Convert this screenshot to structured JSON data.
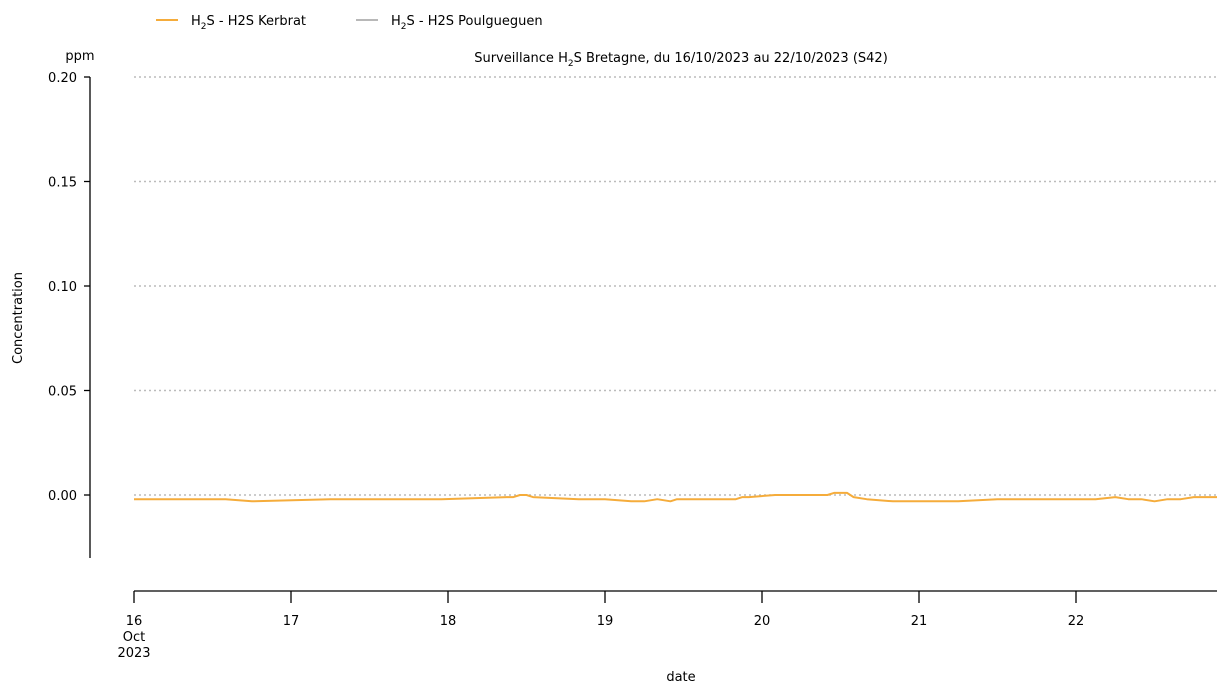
{
  "chart_data": {
    "type": "line",
    "title_prefix": "Surveillance H",
    "title_sub": "2",
    "title_suffix": "S Bretagne, du 16/10/2023 au 22/10/2023 (S42)",
    "ylabel": "Concentration",
    "yunit": "ppm",
    "xlabel": "date",
    "ylim": [
      -0.03,
      0.2
    ],
    "yticks": [
      "0.20",
      "0.15",
      "0.10",
      "0.05",
      "0.00"
    ],
    "ytick_values": [
      0.2,
      0.15,
      0.1,
      0.05,
      0.0
    ],
    "xlim": [
      "2023-10-16T00:00",
      "2023-10-22T23:30"
    ],
    "xticks": [
      {
        "date": "2023-10-16T00:00",
        "day": "16",
        "month": "Oct",
        "year": "2023"
      },
      {
        "date": "2023-10-17T00:00",
        "day": "17"
      },
      {
        "date": "2023-10-18T00:00",
        "day": "18"
      },
      {
        "date": "2023-10-19T00:00",
        "day": "19"
      },
      {
        "date": "2023-10-20T00:00",
        "day": "20"
      },
      {
        "date": "2023-10-21T00:00",
        "day": "21"
      },
      {
        "date": "2023-10-22T00:00",
        "day": "22"
      }
    ],
    "grid": "horizontal-dotted",
    "legend_position": "top-left",
    "series": [
      {
        "name_prefix": "H",
        "name_sub": "2",
        "name_suffix": "S - H2S Kerbrat",
        "color": "#f5ac3b",
        "x": [
          "2023-10-16T00:00",
          "2023-10-16T14:00",
          "2023-10-16T13:30",
          "2023-10-16T14:00",
          "2023-10-16T18:00",
          "2023-10-16T18:00",
          "2023-10-17T06:00",
          "2023-10-17T12:00",
          "2023-10-17T22:00",
          "2023-10-17T23:00",
          "2023-10-18T09:00",
          "2023-10-18T10:00",
          "2023-10-18T11:00",
          "2023-10-18T12:00",
          "2023-10-18T13:00",
          "2023-10-18T20:00",
          "2023-10-18T23:30",
          "2023-10-19T00:00",
          "2023-10-19T04:00",
          "2023-10-19T05:00",
          "2023-10-19T06:00",
          "2023-10-19T08:00",
          "2023-10-19T10:00",
          "2023-10-19T11:00",
          "2023-10-19T12:00",
          "2023-10-19T14:00",
          "2023-10-19T17:00",
          "2023-10-19T19:00",
          "2023-10-19T20:00",
          "2023-10-19T21:00",
          "2023-10-19T22:00",
          "2023-10-20T02:00",
          "2023-10-20T06:00",
          "2023-10-20T07:00",
          "2023-10-20T09:00",
          "2023-10-20T10:00",
          "2023-10-20T11:00",
          "2023-10-20T12:00",
          "2023-10-20T13:00",
          "2023-10-20T14:00",
          "2023-10-20T16:00",
          "2023-10-20T20:00",
          "2023-10-21T00:00",
          "2023-10-21T05:00",
          "2023-10-21T06:00",
          "2023-10-21T12:00",
          "2023-10-21T18:00",
          "2023-10-22T03:00",
          "2023-10-22T06:00",
          "2023-10-22T08:00",
          "2023-10-22T10:00",
          "2023-10-22T12:00",
          "2023-10-22T14:00",
          "2023-10-22T16:00",
          "2023-10-22T18:00",
          "2023-10-22T23:30"
        ],
        "y": [
          -0.002,
          -0.002,
          -0.002,
          -0.002,
          -0.003,
          -0.003,
          -0.002,
          -0.002,
          -0.002,
          -0.002,
          -0.001,
          -0.001,
          0.0,
          0.0,
          -0.001,
          -0.002,
          -0.002,
          -0.002,
          -0.003,
          -0.003,
          -0.003,
          -0.002,
          -0.003,
          -0.002,
          -0.002,
          -0.002,
          -0.002,
          -0.002,
          -0.002,
          -0.001,
          -0.001,
          0.0,
          0.0,
          0.0,
          0.0,
          0.0,
          0.001,
          0.001,
          0.001,
          -0.001,
          -0.002,
          -0.003,
          -0.003,
          -0.003,
          -0.003,
          -0.002,
          -0.002,
          -0.002,
          -0.001,
          -0.002,
          -0.002,
          -0.003,
          -0.002,
          -0.002,
          -0.001,
          -0.001
        ]
      },
      {
        "name_prefix": "H",
        "name_sub": "2",
        "name_suffix": "S - H2S Poulgueguen",
        "color": "#b8b8b8",
        "x": [],
        "y": []
      }
    ]
  }
}
